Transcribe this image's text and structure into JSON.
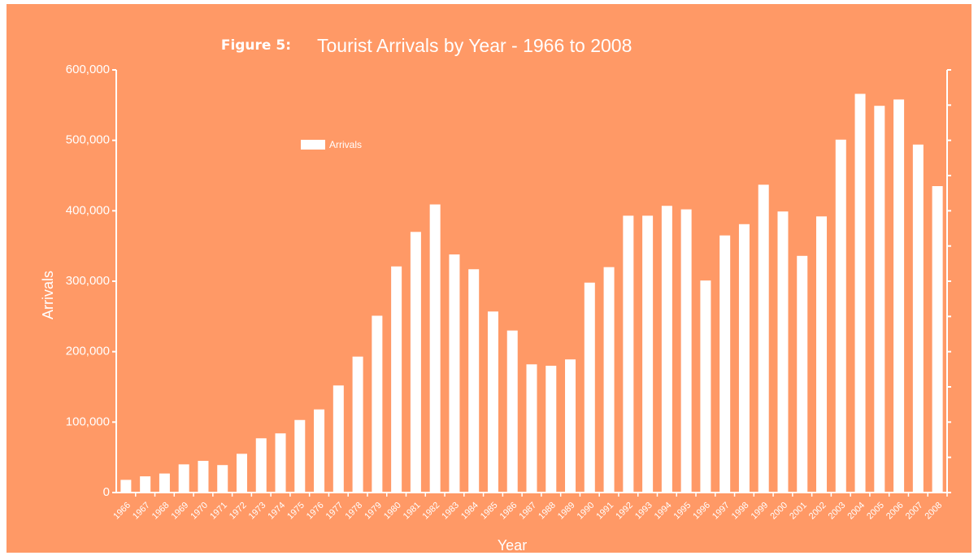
{
  "chart_data": {
    "type": "bar",
    "figure_label": "Figure 5:",
    "title": "Tourist Arrivals by Year - 1966 to 2008",
    "x_label": "Year",
    "y_label": "Arrivals",
    "categories": [
      "1966",
      "1967",
      "1968",
      "1969",
      "1970",
      "1971",
      "1972",
      "1973",
      "1974",
      "1975",
      "1976",
      "1977",
      "1978",
      "1979",
      "1980",
      "1981",
      "1982",
      "1983",
      "1984",
      "1985",
      "1986",
      "1987",
      "1988",
      "1989",
      "1990",
      "1991",
      "1992",
      "1993",
      "1994",
      "1995",
      "1996",
      "1997",
      "1998",
      "1999",
      "2000",
      "2001",
      "2002",
      "2003",
      "2004",
      "2005",
      "2006",
      "2007",
      "2008"
    ],
    "series": [
      {
        "name": "Arrivals",
        "color": "#ffffff",
        "values": [
          18000,
          23000,
          27000,
          40000,
          45000,
          39000,
          55000,
          77000,
          84000,
          103000,
          118000,
          152000,
          193000,
          251000,
          321000,
          370000,
          409000,
          338000,
          317000,
          257000,
          230000,
          182000,
          180000,
          189000,
          298000,
          320000,
          393000,
          393000,
          407000,
          402000,
          301000,
          365000,
          381000,
          437000,
          399000,
          336000,
          392000,
          501000,
          566000,
          549000,
          558000,
          494000,
          435000
        ]
      }
    ],
    "ylim": [
      0,
      600000
    ],
    "yticks": [
      0,
      {
        "value": 100000,
        "label": "100,000"
      },
      {
        "value": 200000,
        "label": "200,000"
      },
      {
        "value": 300000,
        "label": "300,000"
      },
      {
        "value": 400000,
        "label": "400,000"
      },
      {
        "value": 500000,
        "label": "500,000"
      },
      {
        "value": 600000,
        "label": "600,000"
      }
    ],
    "grid": false
  }
}
